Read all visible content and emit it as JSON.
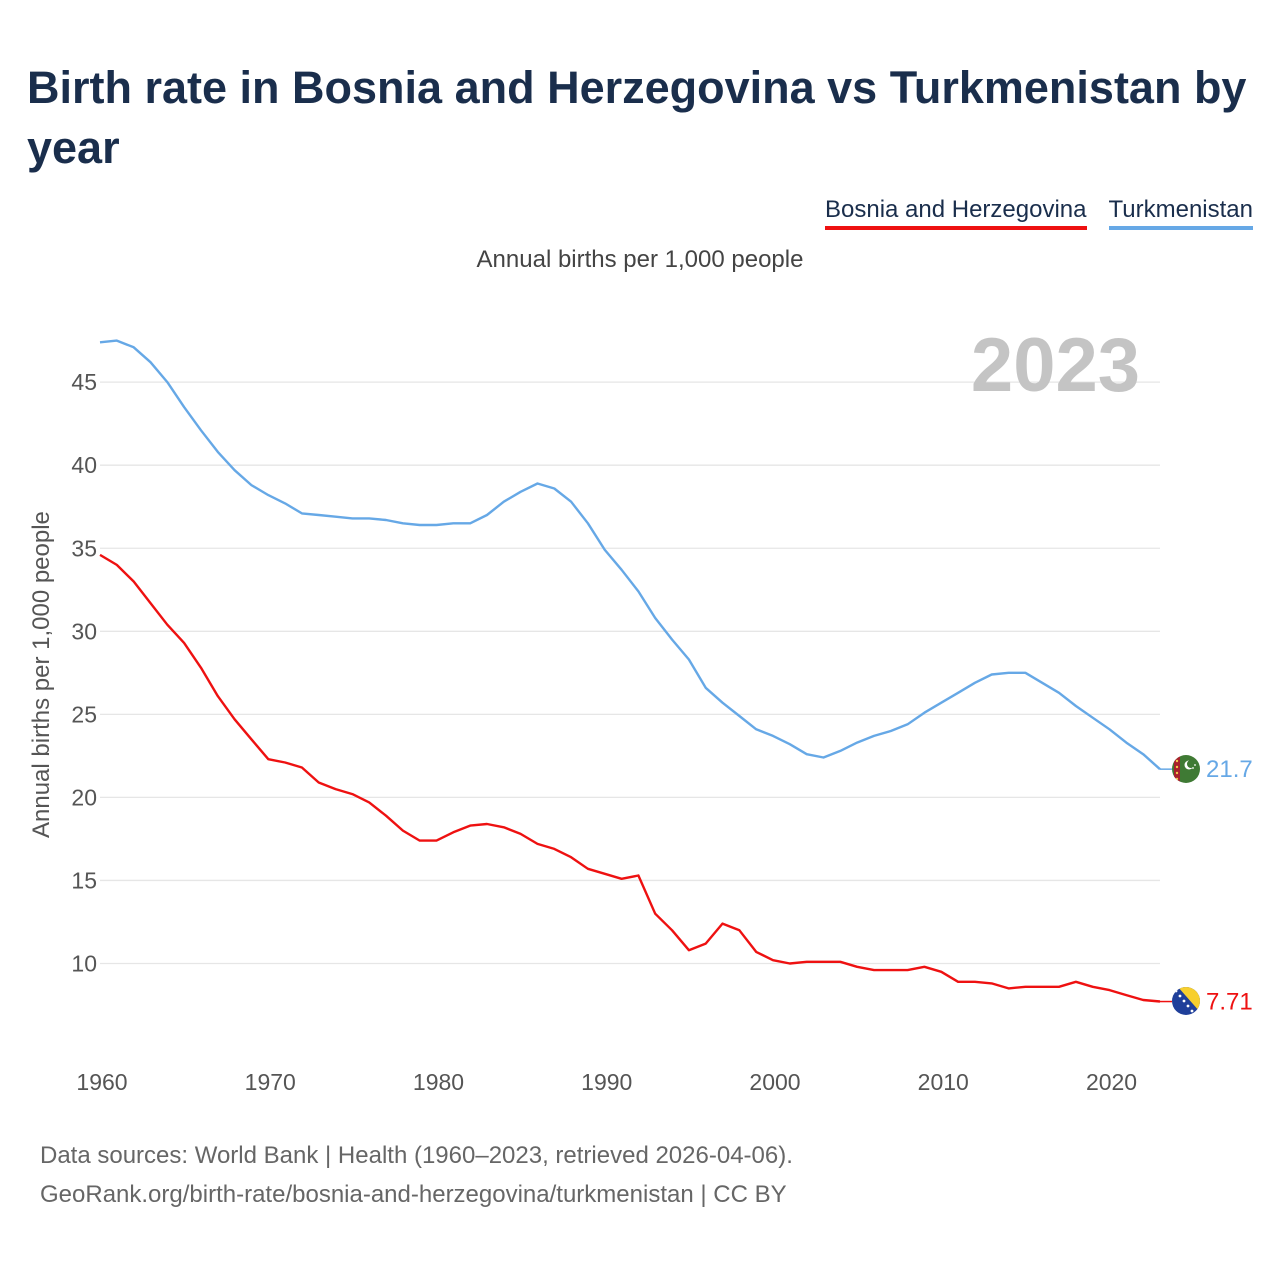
{
  "title": "Birth rate in Bosnia and Herzegovina vs Turkmenistan by year",
  "subtitle": "Annual births per 1,000 people",
  "year_label": "2023",
  "sources": {
    "line1": "Data sources: World Bank | Health (1960–2023, retrieved 2026-04-06).",
    "line2": "GeoRank.org/birth-rate/bosnia-and-herzegovina/turkmenistan | CC BY"
  },
  "chart_data": {
    "type": "line",
    "title": "Birth rate in Bosnia and Herzegovina vs Turkmenistan by year",
    "ylabel": "Annual births per 1,000 people",
    "xlabel": "",
    "xlim": [
      1960,
      2023
    ],
    "ylim": [
      6,
      48
    ],
    "x_ticks": [
      1960,
      1970,
      1980,
      1990,
      2000,
      2010,
      2020
    ],
    "y_ticks": [
      10,
      15,
      20,
      25,
      30,
      35,
      40,
      45
    ],
    "grid": true,
    "legend_position": "top-right",
    "x": [
      1960,
      1961,
      1962,
      1963,
      1964,
      1965,
      1966,
      1967,
      1968,
      1969,
      1970,
      1971,
      1972,
      1973,
      1974,
      1975,
      1976,
      1977,
      1978,
      1979,
      1980,
      1981,
      1982,
      1983,
      1984,
      1985,
      1986,
      1987,
      1988,
      1989,
      1990,
      1991,
      1992,
      1993,
      1994,
      1995,
      1996,
      1997,
      1998,
      1999,
      2000,
      2001,
      2002,
      2003,
      2004,
      2005,
      2006,
      2007,
      2008,
      2009,
      2010,
      2011,
      2012,
      2013,
      2014,
      2015,
      2016,
      2017,
      2018,
      2019,
      2020,
      2021,
      2022,
      2023
    ],
    "series": [
      {
        "name": "Bosnia and Herzegovina",
        "color": "#ee1111",
        "end_label": "7.71",
        "flag": "bosnia-flag-icon",
        "values": [
          34.6,
          34.0,
          33.0,
          31.7,
          30.4,
          29.3,
          27.8,
          26.1,
          24.7,
          23.5,
          22.3,
          22.1,
          21.8,
          20.9,
          20.5,
          20.2,
          19.7,
          18.9,
          18.0,
          17.4,
          17.4,
          17.9,
          18.3,
          18.4,
          18.2,
          17.8,
          17.2,
          16.9,
          16.4,
          15.7,
          15.4,
          15.1,
          15.3,
          13.0,
          12.0,
          10.8,
          11.2,
          12.4,
          12.0,
          10.7,
          10.2,
          10.0,
          10.1,
          10.1,
          10.1,
          9.8,
          9.6,
          9.6,
          9.6,
          9.8,
          9.5,
          8.9,
          8.9,
          8.8,
          8.5,
          8.6,
          8.6,
          8.6,
          8.9,
          8.6,
          8.4,
          8.1,
          7.8,
          7.71
        ]
      },
      {
        "name": "Turkmenistan",
        "color": "#66a8e6",
        "end_label": "21.7",
        "flag": "turkmenistan-flag-icon",
        "values": [
          47.4,
          47.5,
          47.1,
          46.2,
          45.0,
          43.5,
          42.1,
          40.8,
          39.7,
          38.8,
          38.2,
          37.7,
          37.1,
          37.0,
          36.9,
          36.8,
          36.8,
          36.7,
          36.5,
          36.4,
          36.4,
          36.5,
          36.5,
          37.0,
          37.8,
          38.4,
          38.9,
          38.6,
          37.8,
          36.5,
          34.9,
          33.7,
          32.4,
          30.8,
          29.5,
          28.3,
          26.6,
          25.7,
          24.9,
          24.1,
          23.7,
          23.2,
          22.6,
          22.4,
          22.8,
          23.3,
          23.7,
          24.0,
          24.4,
          25.1,
          25.7,
          26.3,
          26.9,
          27.4,
          27.5,
          27.5,
          26.9,
          26.3,
          25.5,
          24.8,
          24.1,
          23.3,
          22.6,
          21.7
        ]
      }
    ]
  }
}
